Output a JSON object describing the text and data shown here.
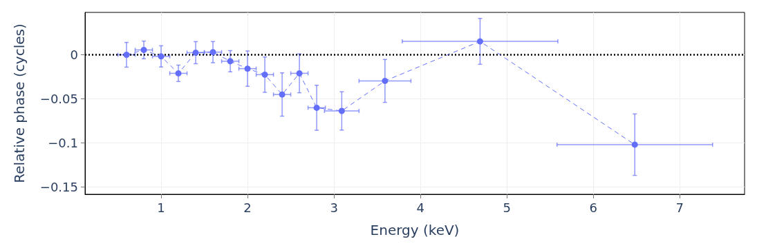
{
  "chart_data": {
    "type": "line",
    "xlabel": "Energy (keV)",
    "ylabel": "Relative phase (cycles)",
    "x": [
      0.6,
      0.8,
      1.0,
      1.2,
      1.4,
      1.6,
      1.8,
      2.0,
      2.2,
      2.4,
      2.6,
      2.8,
      3.09,
      3.59,
      4.69,
      6.48
    ],
    "series": [
      {
        "color": "#636efa",
        "values": [
          0.0,
          0.0055,
          -0.0018,
          -0.021,
          0.0024,
          0.003,
          -0.0073,
          -0.0157,
          -0.0225,
          -0.045,
          -0.021,
          -0.06,
          -0.0636,
          -0.0296,
          0.0152,
          -0.1018
        ],
        "errors": [
          0.014,
          0.01,
          0.012,
          0.0093,
          0.0125,
          0.012,
          0.012,
          0.02,
          0.02,
          0.0245,
          0.022,
          0.0255,
          0.0217,
          0.0243,
          0.026,
          0.0348
        ],
        "xerrors": [
          0.1,
          0.1,
          0.1,
          0.1,
          0.1,
          0.1,
          0.1,
          0.1,
          0.1,
          0.1,
          0.1,
          0.1,
          0.2,
          0.3,
          0.9,
          0.9
        ]
      }
    ],
    "xlim": [
      0.12,
      7.75
    ],
    "xticks": [
      1,
      2,
      3,
      4,
      5,
      6,
      7
    ],
    "ylim": [
      -0.158,
      0.048
    ],
    "yticks": [
      {
        "value": -0.15,
        "label": "−0.15"
      },
      {
        "value": -0.1,
        "label": "−0.1"
      },
      {
        "value": -0.05,
        "label": "−0.05"
      },
      0
    ],
    "ref_lines": [
      {
        "axis": "y",
        "value": 0,
        "label": null,
        "color": "#000000",
        "line_style": "dotted"
      }
    ],
    "grid": true,
    "marker": "circle",
    "line_style": "dashed"
  }
}
